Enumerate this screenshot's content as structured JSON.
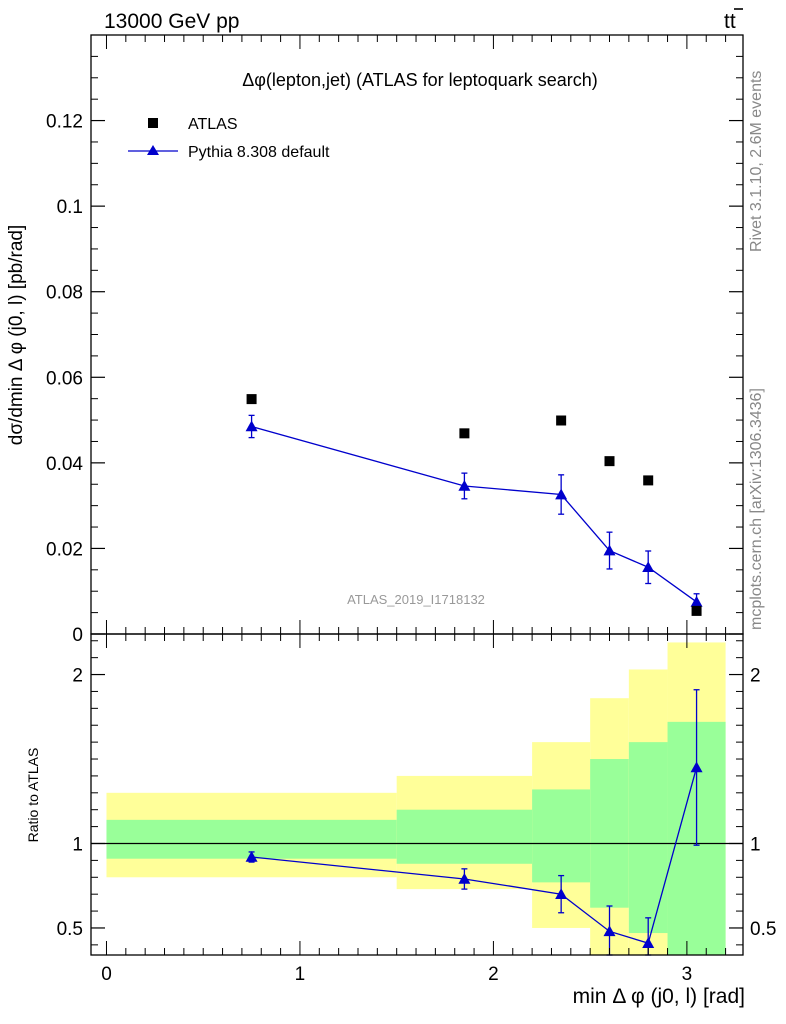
{
  "header": {
    "process": "13000 GeV pp",
    "final_state": "tt",
    "side_rivet": "Rivet 3.1.10,  2.6M events",
    "side_mcplots": "mcplots.cern.ch [arXiv:1306.3436]"
  },
  "chart_data": [
    {
      "type": "scatter",
      "title": "Δφ(lepton,jet) (ATLAS for leptoquark search)",
      "watermark": "ATLAS_2019_I1718132",
      "ylabel": "dσ/dmin Δ φ (j0, l) [pb/rad]",
      "xlim": [
        -0.08,
        3.29
      ],
      "ylim": [
        0,
        0.14
      ],
      "yticks": [
        0,
        0.02,
        0.04,
        0.06,
        0.08,
        0.1,
        0.12
      ],
      "ytick_labels": [
        "0",
        "0.02",
        "0.04",
        "0.06",
        "0.08",
        "0.1",
        "0.12"
      ],
      "legend_position": "top-left",
      "series": [
        {
          "name": "ATLAS",
          "marker": "square",
          "color": "#000000",
          "x": [
            0.75,
            1.85,
            2.35,
            2.6,
            2.8,
            3.05
          ],
          "y": [
            0.0549,
            0.0469,
            0.0499,
            0.0404,
            0.0359,
            0.0054
          ]
        },
        {
          "name": "Pythia 8.308 default",
          "marker": "triangle",
          "color": "#0000cc",
          "x": [
            0.75,
            1.85,
            2.35,
            2.6,
            2.8,
            3.05
          ],
          "y": [
            0.0485,
            0.0346,
            0.0326,
            0.0195,
            0.0156,
            0.0075
          ],
          "yerr": [
            0.0026,
            0.003,
            0.0046,
            0.0043,
            0.0038,
            0.0019
          ]
        }
      ]
    },
    {
      "type": "scatter",
      "ylabel": "Ratio to ATLAS",
      "xlabel": "min Δ φ (j0, l) [rad]",
      "xlim": [
        -0.08,
        3.29
      ],
      "ylim": [
        0.34,
        2.24
      ],
      "xticks": [
        0,
        1,
        2,
        3
      ],
      "xtick_labels": [
        "0",
        "1",
        "2",
        "3"
      ],
      "yticks": [
        0.5,
        1,
        2
      ],
      "ytick_labels": [
        "0.5",
        "1",
        "2"
      ],
      "reference_line": 1,
      "bands": [
        {
          "x0": 0.0,
          "x1": 1.5,
          "yellow": [
            0.8,
            1.3
          ],
          "green": [
            0.91,
            1.14
          ]
        },
        {
          "x0": 1.5,
          "x1": 2.2,
          "yellow": [
            0.73,
            1.4
          ],
          "green": [
            0.88,
            1.2
          ]
        },
        {
          "x0": 2.2,
          "x1": 2.5,
          "yellow": [
            0.5,
            1.6
          ],
          "green": [
            0.77,
            1.32
          ]
        },
        {
          "x0": 2.5,
          "x1": 2.7,
          "yellow": [
            0.31,
            1.86
          ],
          "green": [
            0.62,
            1.5
          ]
        },
        {
          "x0": 2.7,
          "x1": 2.9,
          "yellow": [
            0.31,
            2.03
          ],
          "green": [
            0.47,
            1.6
          ]
        },
        {
          "x0": 2.9,
          "x1": 3.2,
          "yellow": [
            0.31,
            2.19
          ],
          "green": [
            0.31,
            1.72
          ]
        }
      ],
      "series": [
        {
          "name": "Pythia 8.308 default",
          "marker": "triangle",
          "color": "#0000cc",
          "x": [
            0.75,
            1.85,
            2.35,
            2.6,
            2.8,
            3.05
          ],
          "y": [
            0.92,
            0.79,
            0.7,
            0.48,
            0.41,
            1.45
          ],
          "yerr": [
            0.03,
            0.06,
            0.11,
            0.15,
            0.15,
            0.46
          ]
        }
      ]
    }
  ]
}
